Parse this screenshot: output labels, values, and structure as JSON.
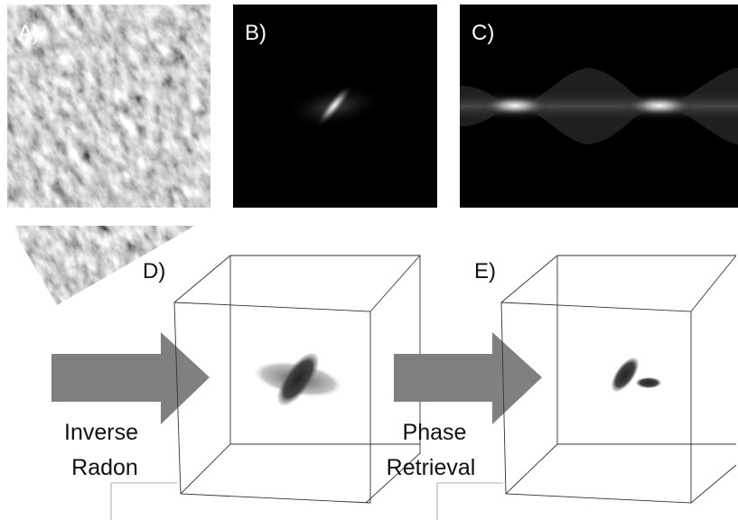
{
  "panels": [
    {
      "label": "A)"
    },
    {
      "label": "B)"
    },
    {
      "label": "C)"
    },
    {
      "label": "D)"
    },
    {
      "label": "E)"
    }
  ],
  "arrows": [
    {
      "label_lines": [
        "Inverse",
        "Radon"
      ]
    },
    {
      "label_lines": [
        "Phase",
        "Retrieval"
      ]
    }
  ]
}
